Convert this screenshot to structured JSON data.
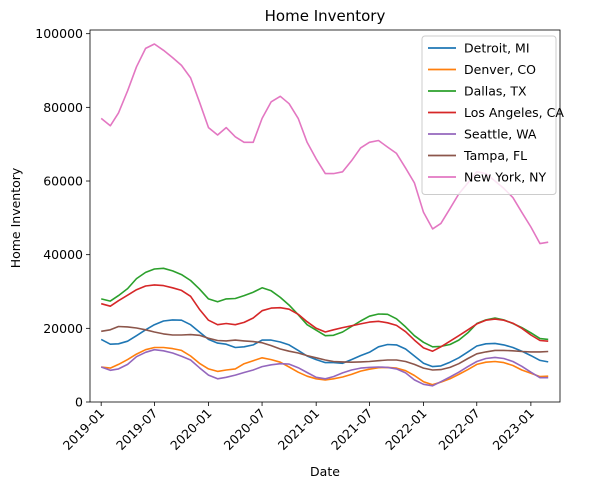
{
  "chart_data": {
    "type": "line",
    "title": "Home Inventory",
    "xlabel": "Date",
    "ylabel": "Home Inventory",
    "ylim": [
      0,
      101000
    ],
    "xlim": [
      "2018-11-24",
      "2023-04-10"
    ],
    "grid": false,
    "legend_position": "top-right",
    "x_ticks": [
      "2019-01",
      "2019-07",
      "2020-01",
      "2020-07",
      "2021-01",
      "2021-07",
      "2022-01",
      "2022-07",
      "2023-01"
    ],
    "y_ticks": [
      0,
      20000,
      40000,
      60000,
      80000,
      100000
    ],
    "x": [
      "2019-01",
      "2019-02",
      "2019-03",
      "2019-04",
      "2019-05",
      "2019-06",
      "2019-07",
      "2019-08",
      "2019-09",
      "2019-10",
      "2019-11",
      "2019-12",
      "2020-01",
      "2020-02",
      "2020-03",
      "2020-04",
      "2020-05",
      "2020-06",
      "2020-07",
      "2020-08",
      "2020-09",
      "2020-10",
      "2020-11",
      "2020-12",
      "2021-01",
      "2021-02",
      "2021-03",
      "2021-04",
      "2021-05",
      "2021-06",
      "2021-07",
      "2021-08",
      "2021-09",
      "2021-10",
      "2021-11",
      "2021-12",
      "2022-01",
      "2022-02",
      "2022-03",
      "2022-04",
      "2022-05",
      "2022-06",
      "2022-07",
      "2022-08",
      "2022-09",
      "2022-10",
      "2022-11",
      "2022-12",
      "2023-01",
      "2023-02",
      "2023-03"
    ],
    "series": [
      {
        "name": "Detroit, MI",
        "color": "#1f77b4",
        "values": [
          17000,
          15700,
          15800,
          16500,
          18000,
          19600,
          21000,
          22000,
          22300,
          22200,
          21000,
          19000,
          17000,
          16000,
          15700,
          14800,
          15000,
          15500,
          16800,
          16800,
          16300,
          15500,
          14000,
          12500,
          11500,
          10700,
          10700,
          10500,
          11500,
          12600,
          13500,
          15000,
          15600,
          15500,
          14400,
          12500,
          10500,
          9600,
          9800,
          10800,
          12000,
          13600,
          15200,
          15800,
          15900,
          15500,
          14800,
          13800,
          12600,
          11300,
          10900
        ]
      },
      {
        "name": "Denver, CO",
        "color": "#ff7f0e",
        "values": [
          9500,
          9200,
          10200,
          11500,
          13000,
          14200,
          14800,
          14800,
          14500,
          14000,
          12500,
          10500,
          9000,
          8300,
          8700,
          9000,
          10400,
          11200,
          12000,
          11500,
          10800,
          9500,
          8100,
          7000,
          6300,
          6000,
          6300,
          6800,
          7500,
          8400,
          8900,
          9300,
          9400,
          9200,
          8500,
          7200,
          5500,
          4700,
          5400,
          6300,
          7500,
          8800,
          10200,
          10800,
          11000,
          10700,
          9900,
          8700,
          7800,
          6900,
          7000
        ]
      },
      {
        "name": "Dallas, TX",
        "color": "#2ca02c",
        "values": [
          28000,
          27400,
          28900,
          30800,
          33500,
          35200,
          36100,
          36300,
          35600,
          34600,
          33000,
          30700,
          28000,
          27200,
          28000,
          28100,
          28900,
          29800,
          31000,
          30200,
          28400,
          26300,
          23700,
          21000,
          19500,
          18000,
          18100,
          19000,
          20500,
          22000,
          23300,
          23900,
          23800,
          22600,
          20400,
          18000,
          16200,
          15000,
          15100,
          15600,
          16800,
          18800,
          21300,
          22300,
          22800,
          22300,
          21300,
          20200,
          18800,
          17200,
          17000
        ]
      },
      {
        "name": "Los Angeles, CA",
        "color": "#d62728",
        "values": [
          26700,
          26000,
          27500,
          29000,
          30500,
          31500,
          31800,
          31600,
          31000,
          30300,
          28700,
          25200,
          22200,
          21000,
          21300,
          21000,
          21600,
          22800,
          24800,
          25500,
          25600,
          25200,
          23800,
          21800,
          20000,
          19000,
          19600,
          20200,
          20700,
          21200,
          21700,
          21900,
          21500,
          20800,
          19100,
          16800,
          14700,
          13800,
          15000,
          16500,
          18000,
          19600,
          21200,
          22200,
          22500,
          22200,
          21400,
          20000,
          18200,
          16700,
          16500
        ]
      },
      {
        "name": "Seattle, WA",
        "color": "#9467bd",
        "values": [
          9500,
          8600,
          9000,
          10200,
          12300,
          13500,
          14200,
          13900,
          13300,
          12400,
          11400,
          9300,
          7300,
          6300,
          6700,
          7300,
          8000,
          8700,
          9600,
          10100,
          10400,
          10300,
          9300,
          8000,
          6700,
          6300,
          6900,
          7900,
          8700,
          9200,
          9400,
          9500,
          9400,
          9000,
          7900,
          6000,
          4800,
          4400,
          5500,
          6800,
          8100,
          9600,
          11000,
          11800,
          12100,
          11800,
          11000,
          9700,
          8100,
          6600,
          6600
        ]
      },
      {
        "name": "Tampa, FL",
        "color": "#8c564b",
        "values": [
          19200,
          19600,
          20500,
          20400,
          20100,
          19600,
          19000,
          18500,
          18200,
          18200,
          18300,
          18100,
          17300,
          16700,
          16600,
          16800,
          16600,
          16400,
          16100,
          15300,
          14400,
          13800,
          13300,
          12600,
          12000,
          11400,
          11000,
          10900,
          10800,
          10900,
          11000,
          11200,
          11400,
          11400,
          11000,
          10200,
          9200,
          8700,
          8800,
          9400,
          10400,
          11800,
          13100,
          13600,
          14000,
          14000,
          13900,
          13700,
          13600,
          13600,
          13700
        ]
      },
      {
        "name": "New York, NY",
        "color": "#e377c2",
        "values": [
          77000,
          75000,
          78500,
          84500,
          91000,
          96000,
          97200,
          95500,
          93500,
          91400,
          88000,
          81500,
          74500,
          72500,
          74500,
          72000,
          70500,
          70500,
          77000,
          81500,
          83000,
          81000,
          77000,
          70500,
          66000,
          62000,
          62000,
          62500,
          65500,
          69000,
          70500,
          71000,
          69200,
          67500,
          63500,
          59500,
          51500,
          47000,
          48500,
          52500,
          56500,
          59500,
          62500,
          62000,
          60000,
          58000,
          55500,
          51500,
          47500,
          43000,
          43400
        ]
      }
    ]
  }
}
